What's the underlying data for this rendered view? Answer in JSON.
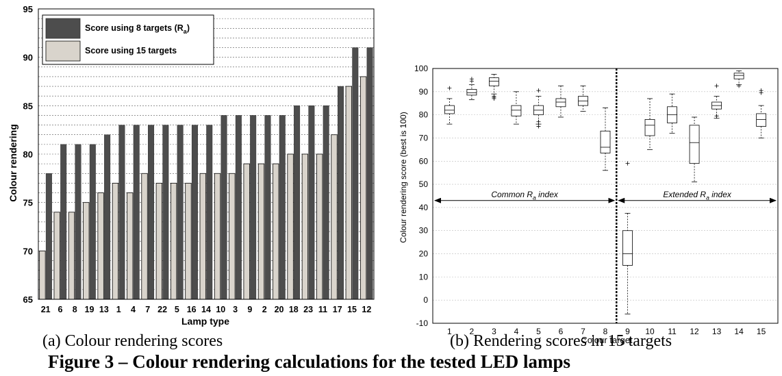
{
  "chart_data": [
    {
      "type": "bar",
      "xlabel": "Lamp type",
      "ylabel": "Colour rendering",
      "ylim": [
        65,
        95
      ],
      "yticks": [
        65,
        70,
        75,
        80,
        85,
        90,
        95
      ],
      "grid": true,
      "legend_position": "top-left",
      "categories": [
        "21",
        "6",
        "8",
        "19",
        "13",
        "1",
        "4",
        "7",
        "22",
        "5",
        "16",
        "14",
        "10",
        "3",
        "9",
        "2",
        "20",
        "18",
        "23",
        "11",
        "17",
        "15",
        "12"
      ],
      "series": [
        {
          "name": "Score using 8 targets (R",
          "name_sub": "a",
          "name_tail": ")",
          "color": "#4d4d4d",
          "values": [
            78,
            81,
            81,
            81,
            82,
            83,
            83,
            83,
            83,
            83,
            83,
            83,
            84,
            84,
            84,
            84,
            84,
            85,
            85,
            85,
            87,
            91,
            91
          ]
        },
        {
          "name": "Score using 15 targets",
          "color": "#d9d4cc",
          "values": [
            70,
            74,
            74,
            75,
            76,
            77,
            76,
            78,
            77,
            77,
            77,
            78,
            78,
            78,
            79,
            79,
            79,
            80,
            80,
            80,
            82,
            87,
            88
          ]
        }
      ]
    },
    {
      "type": "box",
      "xlabel": "Colour target",
      "ylabel": "Colour rendering score (best is 100)",
      "ylim": [
        -10,
        100
      ],
      "yticks": [
        -10,
        0,
        10,
        20,
        30,
        40,
        50,
        60,
        70,
        80,
        90,
        100
      ],
      "grid": true,
      "categories": [
        "1",
        "2",
        "3",
        "4",
        "5",
        "6",
        "7",
        "8",
        "9",
        "10",
        "11",
        "12",
        "13",
        "14",
        "15"
      ],
      "boxes": [
        {
          "min": 76,
          "q1": 80.5,
          "median": 82,
          "q3": 84,
          "max": 87,
          "outliers": [
            91.5
          ]
        },
        {
          "min": 86.5,
          "q1": 88.5,
          "median": 89.5,
          "q3": 91,
          "max": 93,
          "outliers": [
            94.5,
            95.5
          ]
        },
        {
          "min": 89,
          "q1": 92.5,
          "median": 94.5,
          "q3": 96,
          "max": 97.5,
          "outliers": [
            87,
            87.5,
            88
          ]
        },
        {
          "min": 76,
          "q1": 79.5,
          "median": 82,
          "q3": 84,
          "max": 90,
          "outliers": []
        },
        {
          "min": 76,
          "q1": 80,
          "median": 82,
          "q3": 84,
          "max": 88,
          "outliers": [
            75,
            77,
            90.5
          ]
        },
        {
          "min": 79,
          "q1": 83.5,
          "median": 85.5,
          "q3": 87,
          "max": 92.5,
          "outliers": []
        },
        {
          "min": 81.5,
          "q1": 84,
          "median": 86,
          "q3": 88,
          "max": 92.5,
          "outliers": []
        },
        {
          "min": 56,
          "q1": 63.5,
          "median": 66,
          "q3": 73,
          "max": 83,
          "outliers": []
        },
        {
          "min": -6,
          "q1": 15,
          "median": 20,
          "q3": 30,
          "max": 37.5,
          "outliers": [
            59
          ]
        },
        {
          "min": 65,
          "q1": 71,
          "median": 75.5,
          "q3": 78,
          "max": 87,
          "outliers": []
        },
        {
          "min": 72,
          "q1": 76.5,
          "median": 80,
          "q3": 83.5,
          "max": 89,
          "outliers": []
        },
        {
          "min": 51,
          "q1": 59,
          "median": 68,
          "q3": 75.5,
          "max": 79,
          "outliers": []
        },
        {
          "min": 78.5,
          "q1": 82.5,
          "median": 84,
          "q3": 85.5,
          "max": 88,
          "outliers": [
            79.5,
            92.5
          ]
        },
        {
          "min": 93,
          "q1": 95.5,
          "median": 97,
          "q3": 98,
          "max": 99,
          "outliers": [
            92.5
          ]
        },
        {
          "min": 70,
          "q1": 75,
          "median": 78,
          "q3": 80.5,
          "max": 84,
          "outliers": [
            89.5,
            90.5
          ]
        }
      ],
      "divider_after_category": "8",
      "annotations": [
        {
          "text": "Common R",
          "sub": "a",
          "tail": " index",
          "y": 43,
          "range": [
            "0.5",
            "8.5"
          ]
        },
        {
          "text": "Extended R",
          "sub": "a",
          "tail": " index",
          "y": 43,
          "range": [
            "8.5",
            "15.5"
          ]
        }
      ]
    }
  ],
  "captions": {
    "a": "(a) Colour rendering scores",
    "b": "(b) Rendering scores in 15 targets"
  },
  "figure_title": "Figure 3 – Colour rendering calculations for the tested LED lamps"
}
